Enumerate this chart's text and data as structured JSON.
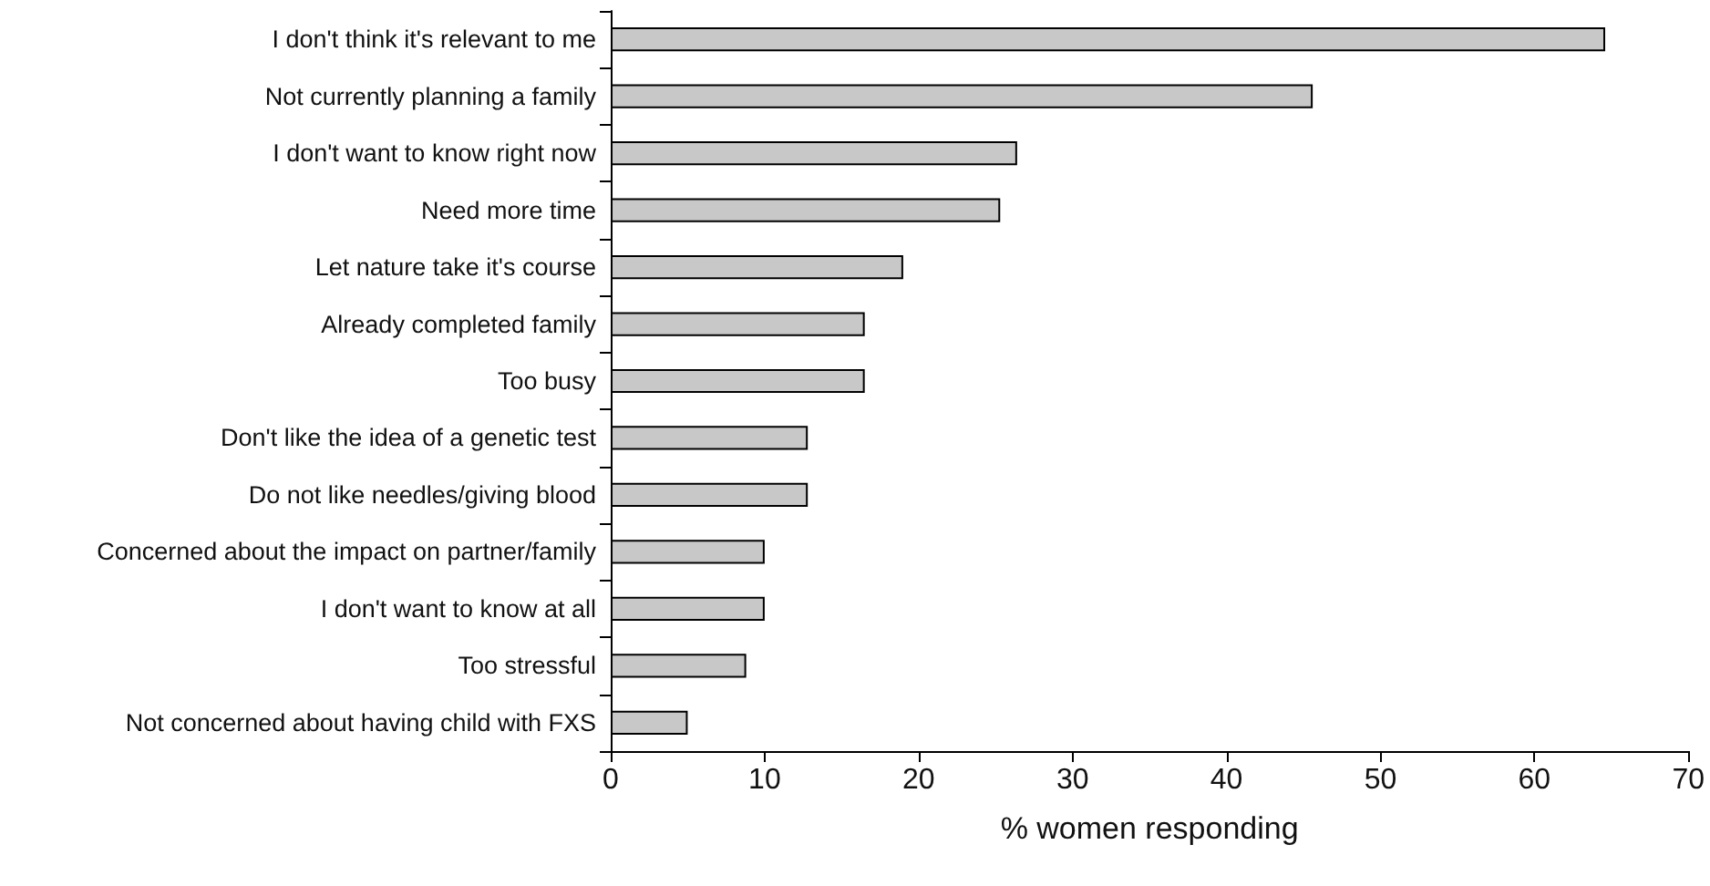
{
  "chart_data": {
    "type": "bar",
    "orientation": "horizontal",
    "xlabel": "% women responding",
    "categories": [
      "I don't think it's relevant to me",
      "Not currently planning a family",
      "I don't want to know right now",
      "Need more time",
      "Let nature take it's course",
      "Already completed family",
      "Too busy",
      "Don't like the idea of a genetic test",
      "Do not like needles/giving blood",
      "Concerned about the impact on partner/family",
      "I don't want to know at all",
      "Too stressful",
      "Not concerned about having child with FXS"
    ],
    "values": [
      64.6,
      45.6,
      26.4,
      25.3,
      19.0,
      16.5,
      16.5,
      12.8,
      12.8,
      10,
      10,
      8.8,
      5
    ],
    "color": "#c8c8c8",
    "xlim": [
      0,
      70
    ],
    "xticks": [
      0,
      10,
      20,
      30,
      40,
      50,
      60,
      70
    ]
  }
}
